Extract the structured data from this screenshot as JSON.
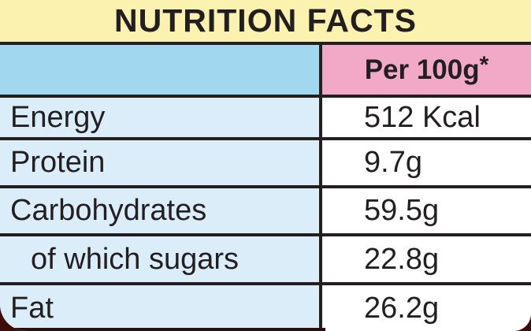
{
  "title": "NUTRITION FACTS",
  "table": {
    "header": {
      "left_label": "",
      "value_label": "Per 100g",
      "value_superscript": "*"
    },
    "rows": [
      {
        "label": "Energy",
        "value": "512 Kcal",
        "indented": false
      },
      {
        "label": "Protein",
        "value": "9.7g",
        "indented": false
      },
      {
        "label": "Carbohydrates",
        "value": "59.5g",
        "indented": false
      },
      {
        "label": "of which sugars",
        "value": "22.8g",
        "indented": true
      },
      {
        "label": "Fat",
        "value": "26.2g",
        "indented": false
      }
    ]
  },
  "colors": {
    "title_background": "#fbf2af",
    "header_left_background": "#a2d7f0",
    "header_right_background": "#f2a9c8",
    "row_left_background": "#dcedfa",
    "row_right_background": "#ffffff",
    "border": "#231f20",
    "text": "#231f20",
    "outer_corner_background": "#3e0d0b"
  }
}
